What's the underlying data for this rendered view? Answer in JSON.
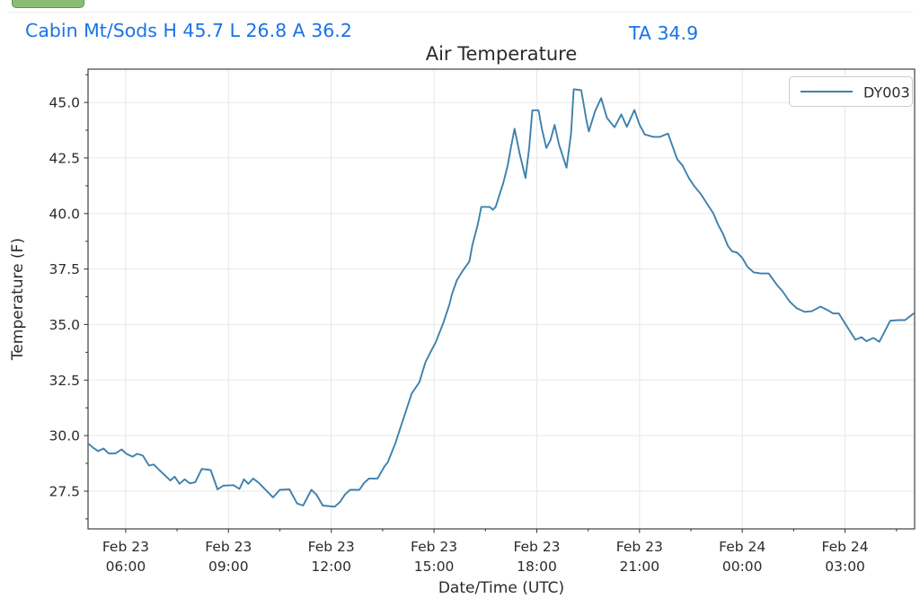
{
  "header": {
    "station_summary": "Cabin Mt/Sods H 45.7 L 26.8 A 36.2",
    "current_reading": "TA 34.9",
    "accent_color": "#1a73e8",
    "button_color": "#8abc72"
  },
  "chart_data": {
    "type": "line",
    "title": "Air Temperature",
    "xlabel": "Date/Time (UTC)",
    "ylabel": "Temperature (F)",
    "grid": true,
    "legend_position": "upper right",
    "xlim_hours_from_feb23_00utc": [
      4.9,
      29.03
    ],
    "ylim": [
      25.8,
      46.5
    ],
    "x_ticks": [
      {
        "hour": 6,
        "date": "Feb 23",
        "time": "06:00"
      },
      {
        "hour": 9,
        "date": "Feb 23",
        "time": "09:00"
      },
      {
        "hour": 12,
        "date": "Feb 23",
        "time": "12:00"
      },
      {
        "hour": 15,
        "date": "Feb 23",
        "time": "15:00"
      },
      {
        "hour": 18,
        "date": "Feb 23",
        "time": "18:00"
      },
      {
        "hour": 21,
        "date": "Feb 23",
        "time": "21:00"
      },
      {
        "hour": 24,
        "date": "Feb 24",
        "time": "00:00"
      },
      {
        "hour": 27,
        "date": "Feb 24",
        "time": "03:00"
      }
    ],
    "y_ticks": [
      27.5,
      30.0,
      32.5,
      35.0,
      37.5,
      40.0,
      42.5,
      45.0
    ],
    "series": [
      {
        "name": "DY003",
        "color": "#3e81ad",
        "points": [
          [
            4.9,
            29.65
          ],
          [
            5.05,
            29.45
          ],
          [
            5.2,
            29.3
          ],
          [
            5.35,
            29.42
          ],
          [
            5.5,
            29.2
          ],
          [
            5.7,
            29.2
          ],
          [
            5.88,
            29.38
          ],
          [
            6.02,
            29.18
          ],
          [
            6.2,
            29.05
          ],
          [
            6.33,
            29.18
          ],
          [
            6.5,
            29.1
          ],
          [
            6.68,
            28.65
          ],
          [
            6.82,
            28.7
          ],
          [
            6.98,
            28.45
          ],
          [
            7.15,
            28.2
          ],
          [
            7.3,
            27.98
          ],
          [
            7.43,
            28.15
          ],
          [
            7.57,
            27.83
          ],
          [
            7.72,
            28.03
          ],
          [
            7.87,
            27.85
          ],
          [
            8.03,
            27.9
          ],
          [
            8.22,
            28.5
          ],
          [
            8.48,
            28.45
          ],
          [
            8.68,
            27.58
          ],
          [
            8.85,
            27.75
          ],
          [
            9.15,
            27.77
          ],
          [
            9.32,
            27.6
          ],
          [
            9.45,
            28.03
          ],
          [
            9.58,
            27.83
          ],
          [
            9.72,
            28.07
          ],
          [
            9.9,
            27.85
          ],
          [
            10.1,
            27.53
          ],
          [
            10.3,
            27.22
          ],
          [
            10.5,
            27.56
          ],
          [
            10.78,
            27.58
          ],
          [
            11.0,
            26.95
          ],
          [
            11.18,
            26.85
          ],
          [
            11.42,
            27.56
          ],
          [
            11.57,
            27.34
          ],
          [
            11.75,
            26.85
          ],
          [
            12.1,
            26.8
          ],
          [
            12.25,
            27.0
          ],
          [
            12.4,
            27.35
          ],
          [
            12.55,
            27.56
          ],
          [
            12.82,
            27.56
          ],
          [
            12.95,
            27.85
          ],
          [
            13.1,
            28.07
          ],
          [
            13.35,
            28.07
          ],
          [
            13.55,
            28.6
          ],
          [
            13.65,
            28.8
          ],
          [
            13.87,
            29.65
          ],
          [
            14.0,
            30.27
          ],
          [
            14.2,
            31.2
          ],
          [
            14.35,
            31.9
          ],
          [
            14.57,
            32.4
          ],
          [
            14.75,
            33.3
          ],
          [
            14.92,
            33.82
          ],
          [
            15.05,
            34.2
          ],
          [
            15.27,
            35.07
          ],
          [
            15.45,
            35.9
          ],
          [
            15.53,
            36.4
          ],
          [
            15.67,
            37.0
          ],
          [
            15.83,
            37.4
          ],
          [
            16.03,
            37.84
          ],
          [
            16.12,
            38.58
          ],
          [
            16.28,
            39.52
          ],
          [
            16.38,
            40.3
          ],
          [
            16.62,
            40.3
          ],
          [
            16.72,
            40.17
          ],
          [
            16.8,
            40.3
          ],
          [
            16.88,
            40.7
          ],
          [
            17.02,
            41.36
          ],
          [
            17.15,
            42.17
          ],
          [
            17.23,
            42.84
          ],
          [
            17.35,
            43.82
          ],
          [
            17.5,
            42.7
          ],
          [
            17.67,
            41.6
          ],
          [
            17.78,
            43.0
          ],
          [
            17.87,
            44.65
          ],
          [
            18.05,
            44.65
          ],
          [
            18.15,
            43.8
          ],
          [
            18.28,
            42.95
          ],
          [
            18.4,
            43.3
          ],
          [
            18.52,
            43.99
          ],
          [
            18.65,
            43.1
          ],
          [
            18.87,
            42.06
          ],
          [
            19.0,
            43.6
          ],
          [
            19.08,
            45.6
          ],
          [
            19.3,
            45.55
          ],
          [
            19.45,
            44.2
          ],
          [
            19.52,
            43.7
          ],
          [
            19.7,
            44.6
          ],
          [
            19.88,
            45.2
          ],
          [
            20.05,
            44.3
          ],
          [
            20.27,
            43.88
          ],
          [
            20.47,
            44.46
          ],
          [
            20.63,
            43.9
          ],
          [
            20.85,
            44.66
          ],
          [
            21.0,
            44.0
          ],
          [
            21.15,
            43.56
          ],
          [
            21.4,
            43.45
          ],
          [
            21.6,
            43.45
          ],
          [
            21.83,
            43.6
          ],
          [
            22.1,
            42.44
          ],
          [
            22.25,
            42.17
          ],
          [
            22.45,
            41.57
          ],
          [
            22.6,
            41.23
          ],
          [
            22.8,
            40.85
          ],
          [
            22.95,
            40.49
          ],
          [
            23.15,
            40.02
          ],
          [
            23.3,
            39.48
          ],
          [
            23.43,
            39.1
          ],
          [
            23.58,
            38.54
          ],
          [
            23.7,
            38.3
          ],
          [
            23.85,
            38.24
          ],
          [
            24.0,
            38.0
          ],
          [
            24.15,
            37.6
          ],
          [
            24.33,
            37.35
          ],
          [
            24.55,
            37.3
          ],
          [
            24.77,
            37.3
          ],
          [
            25.0,
            36.81
          ],
          [
            25.18,
            36.49
          ],
          [
            25.38,
            36.04
          ],
          [
            25.58,
            35.74
          ],
          [
            25.82,
            35.57
          ],
          [
            26.03,
            35.6
          ],
          [
            26.28,
            35.81
          ],
          [
            26.5,
            35.64
          ],
          [
            26.65,
            35.5
          ],
          [
            26.82,
            35.5
          ],
          [
            27.0,
            35.05
          ],
          [
            27.3,
            34.32
          ],
          [
            27.48,
            34.43
          ],
          [
            27.62,
            34.25
          ],
          [
            27.83,
            34.4
          ],
          [
            28.0,
            34.22
          ],
          [
            28.32,
            35.17
          ],
          [
            28.55,
            35.2
          ],
          [
            28.75,
            35.2
          ],
          [
            29.0,
            35.5
          ]
        ]
      }
    ]
  }
}
